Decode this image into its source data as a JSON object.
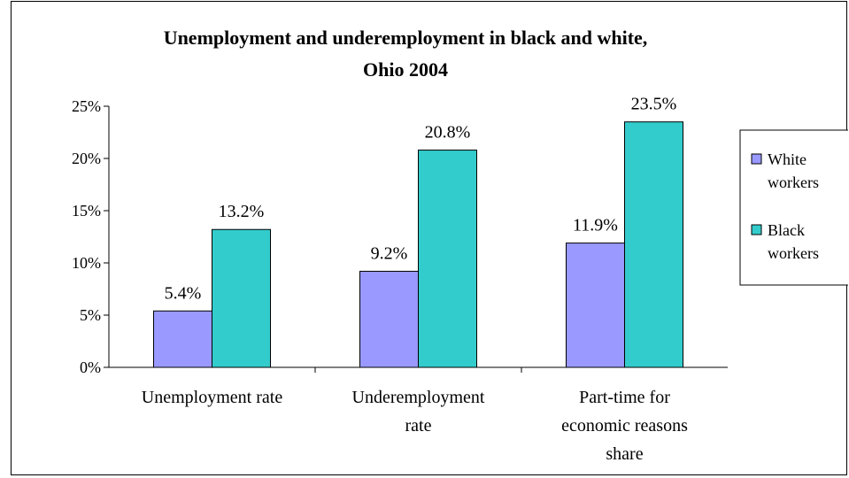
{
  "chart_data": {
    "type": "bar",
    "title_lines": [
      "Unemployment and underemployment in black and white,",
      "Ohio 2004"
    ],
    "categories": [
      [
        "Unemployment rate"
      ],
      [
        "Underemployment",
        "rate"
      ],
      [
        "Part-time for",
        "economic reasons",
        "share"
      ]
    ],
    "series": [
      {
        "name_lines": [
          "White",
          "workers"
        ],
        "color": "#9999ff",
        "values": [
          5.4,
          9.2,
          11.9
        ],
        "labels": [
          "5.4%",
          "9.2%",
          "11.9%"
        ]
      },
      {
        "name_lines": [
          "Black",
          "workers"
        ],
        "color": "#33cccc",
        "values": [
          13.2,
          20.8,
          23.5
        ],
        "labels": [
          "13.2%",
          "20.8%",
          "23.5%"
        ]
      }
    ],
    "yticks": [
      "0%",
      "5%",
      "10%",
      "15%",
      "20%",
      "25%"
    ],
    "ylim": [
      0,
      25
    ],
    "ytick_values": [
      0,
      5,
      10,
      15,
      20,
      25
    ],
    "grid": false,
    "legend_position": "right",
    "xlabel": "",
    "ylabel": ""
  }
}
